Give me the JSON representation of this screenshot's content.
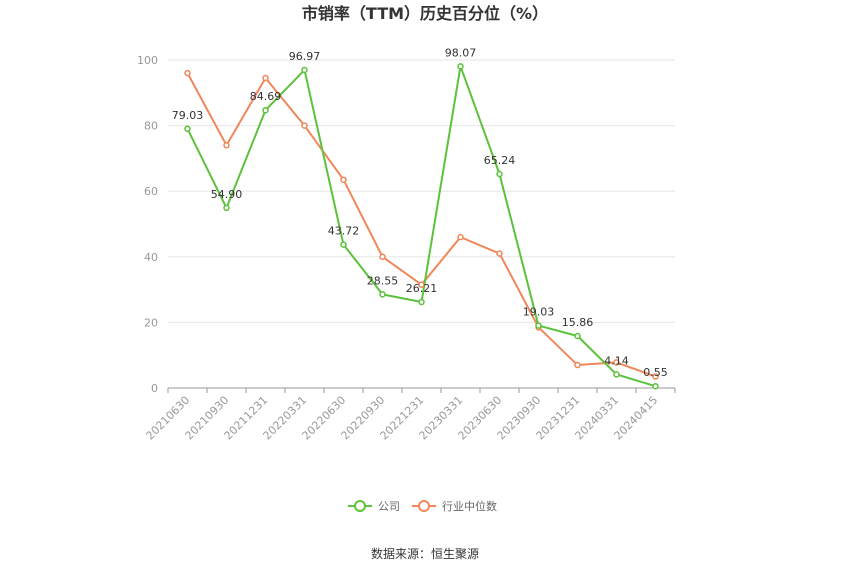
{
  "chart_data": {
    "type": "line",
    "title": "市销率（TTM）历史百分位（%）",
    "categories": [
      "20210630",
      "20210930",
      "20211231",
      "20220331",
      "20220630",
      "20220930",
      "20221231",
      "20230331",
      "20230630",
      "20230930",
      "20231231",
      "20240331",
      "20240415"
    ],
    "ylim": [
      0,
      100
    ],
    "yticks": [
      0,
      20,
      40,
      60,
      80,
      100
    ],
    "grid": true,
    "legend_position": "bottom",
    "series": [
      {
        "name": "公司",
        "color": "#5CC23C",
        "values": [
          79.03,
          54.9,
          84.69,
          96.97,
          43.72,
          28.55,
          26.21,
          98.07,
          65.24,
          19.03,
          15.86,
          4.14,
          0.55
        ],
        "labels": [
          "79.03",
          "54.90",
          "84.69",
          "96.97",
          "43.72",
          "28.55",
          "26.21",
          "98.07",
          "65.24",
          "19.03",
          "15.86",
          "4.14",
          "0.55"
        ]
      },
      {
        "name": "行业中位数",
        "color": "#F0875A",
        "values": [
          96,
          74,
          94.5,
          80,
          63.5,
          40,
          31.5,
          46,
          41,
          18.5,
          7,
          7.8,
          3.5
        ]
      }
    ]
  },
  "source": "数据来源：恒生聚源"
}
